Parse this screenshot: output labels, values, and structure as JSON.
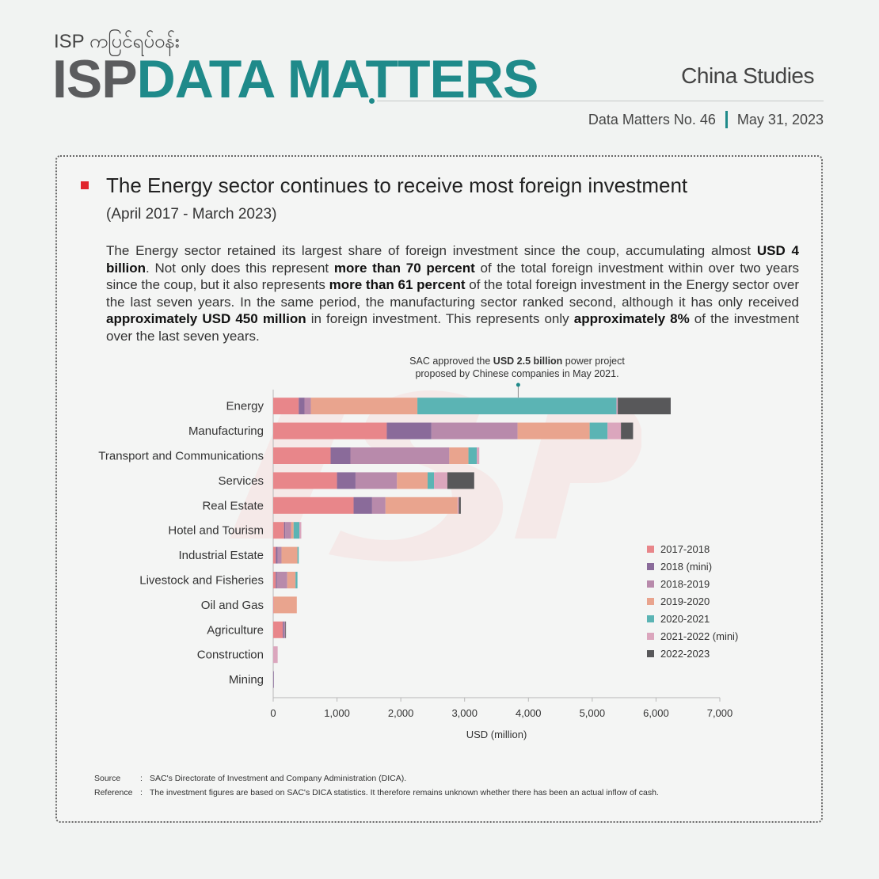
{
  "header": {
    "brand_burmese": "ISP ကပြင်ရပ်ဝန်း",
    "brand_isp": "ISP",
    "brand_title": "DATA MATTERS",
    "series_name": "China Studies",
    "issue": "Data Matters No. 46",
    "date": "May 31, 2023"
  },
  "article": {
    "heading": "The Energy sector continues to receive most foreign investment",
    "subheading": "(April 2017 - March 2023)",
    "body": [
      {
        "text": "The Energy sector retained its largest share of foreign investment since the coup, accumulating almost ",
        "bold": false
      },
      {
        "text": "USD 4 billion",
        "bold": true
      },
      {
        "text": ". Not only does this represent ",
        "bold": false
      },
      {
        "text": "more than 70 percent",
        "bold": true
      },
      {
        "text": " of the total foreign investment within over two years since the coup, but it also represents ",
        "bold": false
      },
      {
        "text": "more than 61 percent",
        "bold": true
      },
      {
        "text": " of the total foreign investment in the Energy sector over the last seven years. In the same period, the manufacturing sector ranked second, although it has only received ",
        "bold": false
      },
      {
        "text": "approximately USD 450 million",
        "bold": true
      },
      {
        "text": " in foreign investment. This represents only ",
        "bold": false
      },
      {
        "text": "approximately 8%",
        "bold": true
      },
      {
        "text": " of the investment over the last seven years.",
        "bold": false
      }
    ]
  },
  "annotation": {
    "line1_pre": "SAC approved the ",
    "line1_bold": "USD 2.5 billion",
    "line1_post": " power project",
    "line2": "proposed by Chinese companies in May 2021."
  },
  "chart_data": {
    "type": "bar",
    "orientation": "horizontal",
    "stacked": true,
    "categories": [
      "Energy",
      "Manufacturing",
      "Transport and Communications",
      "Services",
      "Real Estate",
      "Hotel and Tourism",
      "Industrial Estate",
      "Livestock and Fisheries",
      "Oil and Gas",
      "Agriculture",
      "Construction",
      "Mining"
    ],
    "series": [
      {
        "name": "2017-2018",
        "color": "#e8868a",
        "values": [
          400,
          1780,
          900,
          1000,
          1260,
          170,
          40,
          40,
          10,
          150,
          0,
          0
        ]
      },
      {
        "name": "2018 (mini)",
        "color": "#8a6b9a",
        "values": [
          90,
          700,
          310,
          290,
          290,
          20,
          30,
          20,
          0,
          20,
          0,
          10
        ]
      },
      {
        "name": "2018-2019",
        "color": "#b88aab",
        "values": [
          100,
          1350,
          1550,
          650,
          210,
          90,
          60,
          160,
          0,
          20,
          0,
          0
        ]
      },
      {
        "name": "2019-2020",
        "color": "#e9a48e",
        "values": [
          1670,
          1130,
          300,
          480,
          1130,
          40,
          250,
          130,
          360,
          0,
          0,
          0
        ]
      },
      {
        "name": "2020-2021",
        "color": "#5bb4b4",
        "values": [
          3120,
          280,
          130,
          100,
          0,
          90,
          20,
          30,
          0,
          0,
          0,
          0
        ]
      },
      {
        "name": "2021-2022 (mini)",
        "color": "#dba6bd",
        "values": [
          20,
          210,
          40,
          210,
          20,
          30,
          0,
          0,
          0,
          0,
          70,
          0
        ]
      },
      {
        "name": "2022-2023",
        "color": "#58585a",
        "values": [
          830,
          190,
          0,
          420,
          30,
          0,
          0,
          0,
          0,
          10,
          0,
          0
        ]
      }
    ],
    "xlabel": "USD (million)",
    "ylabel": "",
    "xlim": [
      0,
      7000
    ],
    "xticks": [
      0,
      1000,
      2000,
      3000,
      4000,
      5000,
      6000,
      7000
    ],
    "xtick_labels": [
      "0",
      "1,000",
      "2,000",
      "3,000",
      "4,000",
      "5,000",
      "6,000",
      "7,000"
    ],
    "annotation_x_value": 3840,
    "legend_position": "bottom-right"
  },
  "footnotes": {
    "source_label": "Source",
    "source_text": "SAC's Directorate of Investment and Company Administration (DICA).",
    "reference_label": "Reference",
    "reference_text": "The investment figures are based on SAC's DICA statistics. It therefore remains unknown whether there has been an actual inflow of cash.",
    "colon": ":"
  }
}
